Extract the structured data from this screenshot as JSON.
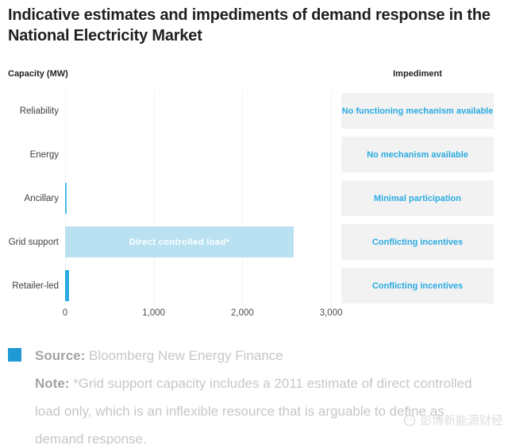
{
  "title": "Indicative estimates and impediments of demand response in the National Electricity Market",
  "chart": {
    "left_header": "Capacity (MW)",
    "right_header": "Impediment",
    "x_ticks": [
      "0",
      "1,000",
      "2,000",
      "3,000"
    ],
    "rows": [
      {
        "label": "Reliability",
        "value": 0,
        "impediment": "No functioning mechanism available",
        "bar_color": "#29abe2",
        "bar_label": ""
      },
      {
        "label": "Energy",
        "value": 0,
        "impediment": "No mechanism available",
        "bar_color": "#29abe2",
        "bar_label": ""
      },
      {
        "label": "Ancillary",
        "value": 20,
        "impediment": "Minimal participation",
        "bar_color": "#4cbcea",
        "bar_label": ""
      },
      {
        "label": "Grid support",
        "value": 2580,
        "impediment": "Conflicting incentives",
        "bar_color": "#bae1f2",
        "bar_label": "Direct controlled load*"
      },
      {
        "label": "Retailer-led",
        "value": 45,
        "impediment": "Conflicting incentives",
        "bar_color": "#29abe2",
        "bar_label": ""
      }
    ]
  },
  "chart_data": {
    "type": "bar",
    "orientation": "horizontal",
    "title": "Indicative estimates and impediments of demand response in the National Electricity Market",
    "categories": [
      "Reliability",
      "Energy",
      "Ancillary",
      "Grid support",
      "Retailer-led"
    ],
    "values": [
      0,
      0,
      20,
      2580,
      45
    ],
    "bar_annotations": [
      "",
      "",
      "",
      "Direct controlled load*",
      ""
    ],
    "impediments": [
      "No functioning mechanism available",
      "No mechanism available",
      "Minimal participation",
      "Conflicting incentives",
      "Conflicting incentives"
    ],
    "xlabel": "",
    "ylabel": "Capacity (MW)",
    "x_tick_values": [
      0,
      1000,
      2000,
      3000
    ],
    "xlim": [
      0,
      3100
    ],
    "grid": true,
    "legend_position": "none",
    "accent_color": "#29abe2",
    "light_bar_color": "#bae1f2",
    "box_background": "#f2f2f2"
  },
  "footer": {
    "source_label": "Source:",
    "source_text": " Bloomberg New Energy Finance",
    "note_label": "Note:",
    "note_text": " *Grid support capacity includes a 2011 estimate of direct controlled load only, which is an inflexible resource that is arguable to define as demand response."
  },
  "watermark": "彭博新能源财经"
}
